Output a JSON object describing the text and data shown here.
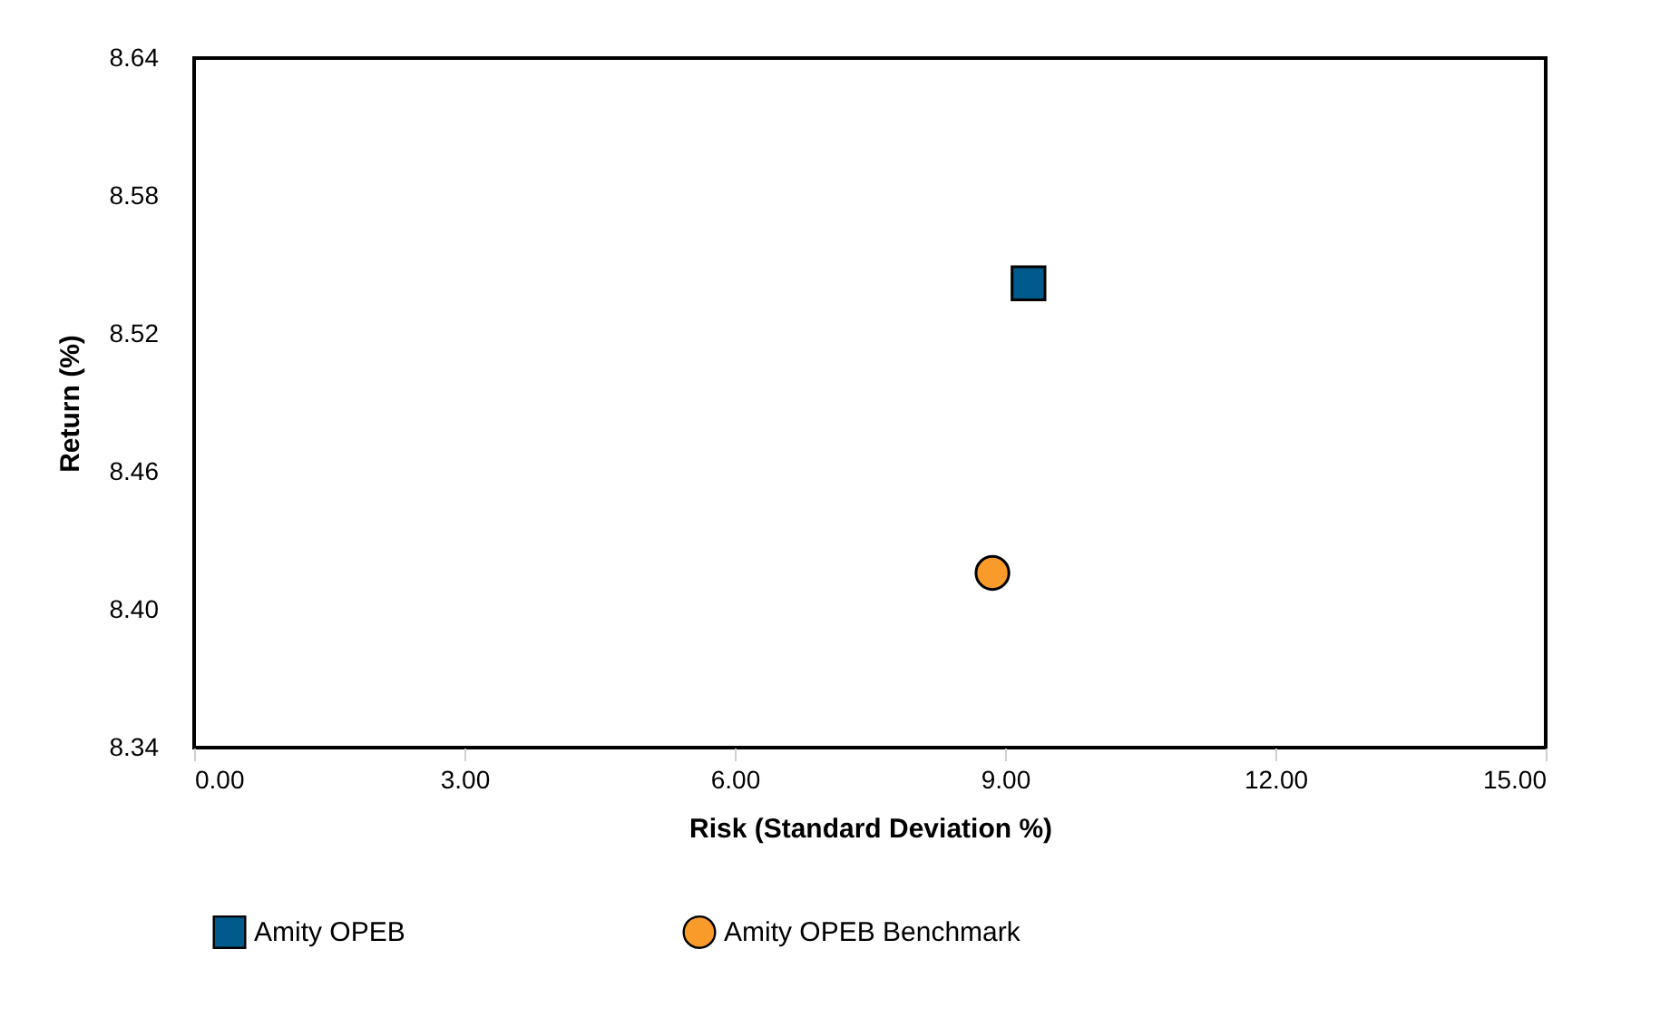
{
  "chart_data": {
    "type": "scatter",
    "xlabel": "Risk (Standard Deviation %)",
    "ylabel": "Return (%)",
    "series": [
      {
        "name": "Amity OPEB",
        "color": "#005a8b",
        "marker": "square",
        "x": [
          9.26
        ],
        "values": [
          8.542
        ]
      },
      {
        "name": "Amity OPEB Benchmark",
        "color": "#f99b2b",
        "marker": "circle",
        "x": [
          8.86
        ],
        "values": [
          8.416
        ]
      }
    ],
    "xlim": [
      0,
      15
    ],
    "xticks": [
      {
        "value": 0,
        "label": "0.00"
      },
      {
        "value": 3,
        "label": "3.00"
      },
      {
        "value": 6,
        "label": "6.00"
      },
      {
        "value": 9,
        "label": "9.00"
      },
      {
        "value": 12,
        "label": "12.00"
      },
      {
        "value": 15,
        "label": "15.00"
      }
    ],
    "ylim": [
      8.34,
      8.64
    ],
    "yticks": [
      8.34,
      {
        "value": 8.4,
        "label": "8.40"
      },
      8.46,
      8.52,
      8.58,
      8.64
    ],
    "grid": false,
    "legend": "bottom"
  }
}
